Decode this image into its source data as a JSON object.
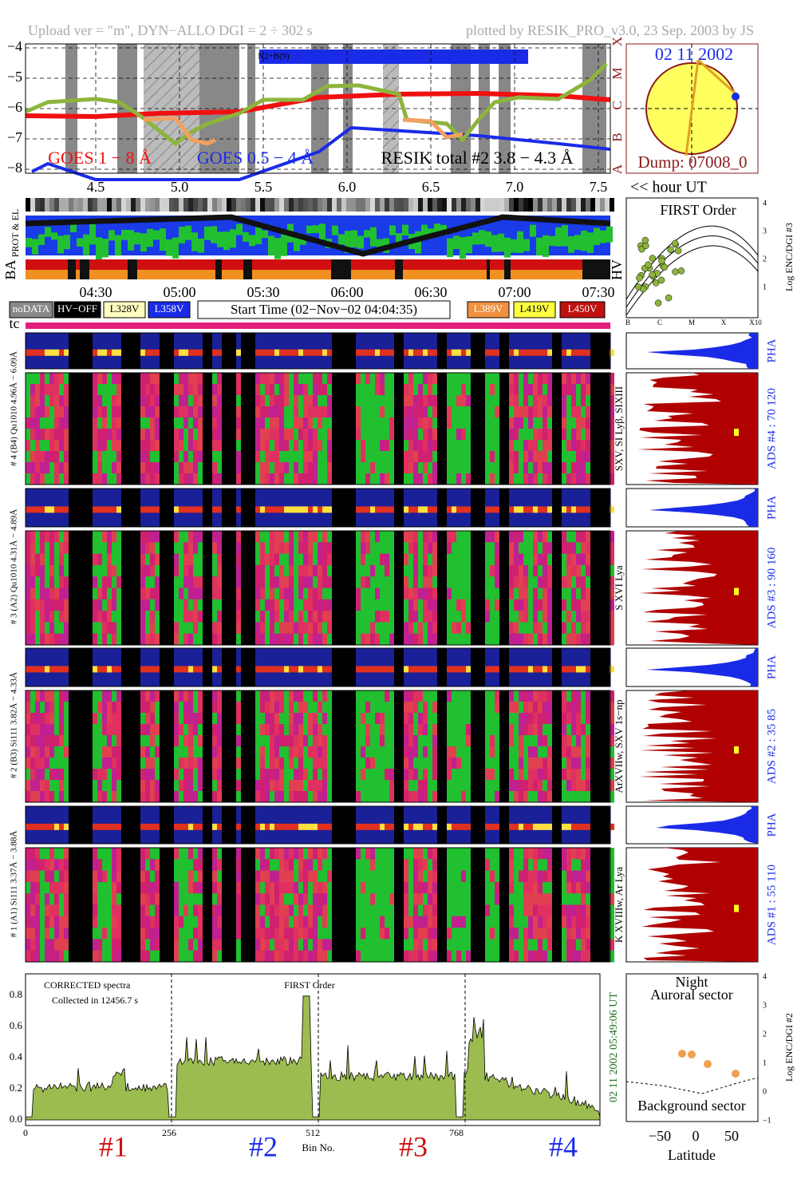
{
  "header": {
    "left": "Upload ver = \"m\", DYN−ALLO DGI =   2 ÷ 302 s",
    "right": "plotted by RESIK_PRO_v3.0, 23 Sep. 2003 by JS"
  },
  "goes": {
    "yticks": [
      "−4",
      "−5",
      "−6",
      "−7",
      "−8"
    ],
    "classes": [
      "X",
      "M",
      "C",
      "B",
      "A"
    ],
    "legend": [
      "GOES 1 − 8 Å",
      "GOES 0.5 − 4 Å",
      "RESIK total #2  3.8 − 4.3 Å"
    ],
    "annotation": "N2+B(9)",
    "xticks": [
      "4.5",
      "5.0",
      "5.5",
      "6.0",
      "6.5",
      "7.0",
      "7.5"
    ],
    "x_unit": "<< hour UT"
  },
  "sun": {
    "date": "02 11 2002",
    "dump": "Dump: 07008_0"
  },
  "strips": {
    "prot": "PROT & EL",
    "ba": "BA",
    "hv": "HV",
    "times": [
      "04:30",
      "05:00",
      "05:30",
      "06:00",
      "06:30",
      "07:00",
      "07:30"
    ]
  },
  "legend": {
    "left": [
      "noDATA",
      "HV−OFF",
      "L328V",
      "L358V"
    ],
    "start": "Start Time (02−Nov−02 04:04:35)",
    "right": [
      "L389V",
      "L419V",
      "L450V"
    ]
  },
  "tc": "tc",
  "pha": "PHA",
  "channels": [
    {
      "label": "# 4 (B4) Qu1010 4.96Å − 6.09Å",
      "lines": "SXV, SI Lyβ, SIXIII",
      "ads": "ADS #4 :   70 120"
    },
    {
      "label": "# 3 (A2) Qu1010 4.31Å − 4.89Å",
      "lines": "S XVI Lya",
      "ads": "ADS #3 :   90 160"
    },
    {
      "label": "# 2 (B3) Si111 3.82Å − 4.33Å",
      "lines": "ArXVIIw, SXV 1s−np",
      "ads": "ADS #2 :   35  85"
    },
    {
      "label": "# 1 (A1) Si111 3.37Å − 3.88Å",
      "lines": "K XVIIIw, Ar Lya",
      "ads": "ADS #1 :   55 110"
    }
  ],
  "first_order": {
    "title": "FIRST Order",
    "yticks": [
      "1",
      "2",
      "3",
      "4"
    ],
    "xticks": [
      "B",
      "C",
      "M",
      "X",
      "X10"
    ],
    "ylabel": "Log ENC/DGI #3"
  },
  "spectrum": {
    "notes": [
      "CORRECTED spectra",
      "Collected in 12456.7 s",
      "FIRST Order"
    ],
    "yticks": [
      "0.0",
      "0.2",
      "0.4",
      "0.6",
      "0.8"
    ],
    "xticks": [
      "0",
      "256",
      "512",
      "768"
    ],
    "xlabel": "Bin No.",
    "detectors": [
      "#1",
      "#2",
      "#3",
      "#4"
    ],
    "timestamp": "02 11 2002   05:49:06 UT"
  },
  "latitude": {
    "notes": [
      "Night",
      "Auroral sector",
      "Background sector"
    ],
    "xlabel": "Latitude",
    "xticks": [
      "−50",
      "0",
      "50"
    ],
    "yticks": [
      "−1",
      "0",
      "1",
      "2",
      "3",
      "4"
    ],
    "ylabel": "Log ENC/DGI #2"
  }
}
